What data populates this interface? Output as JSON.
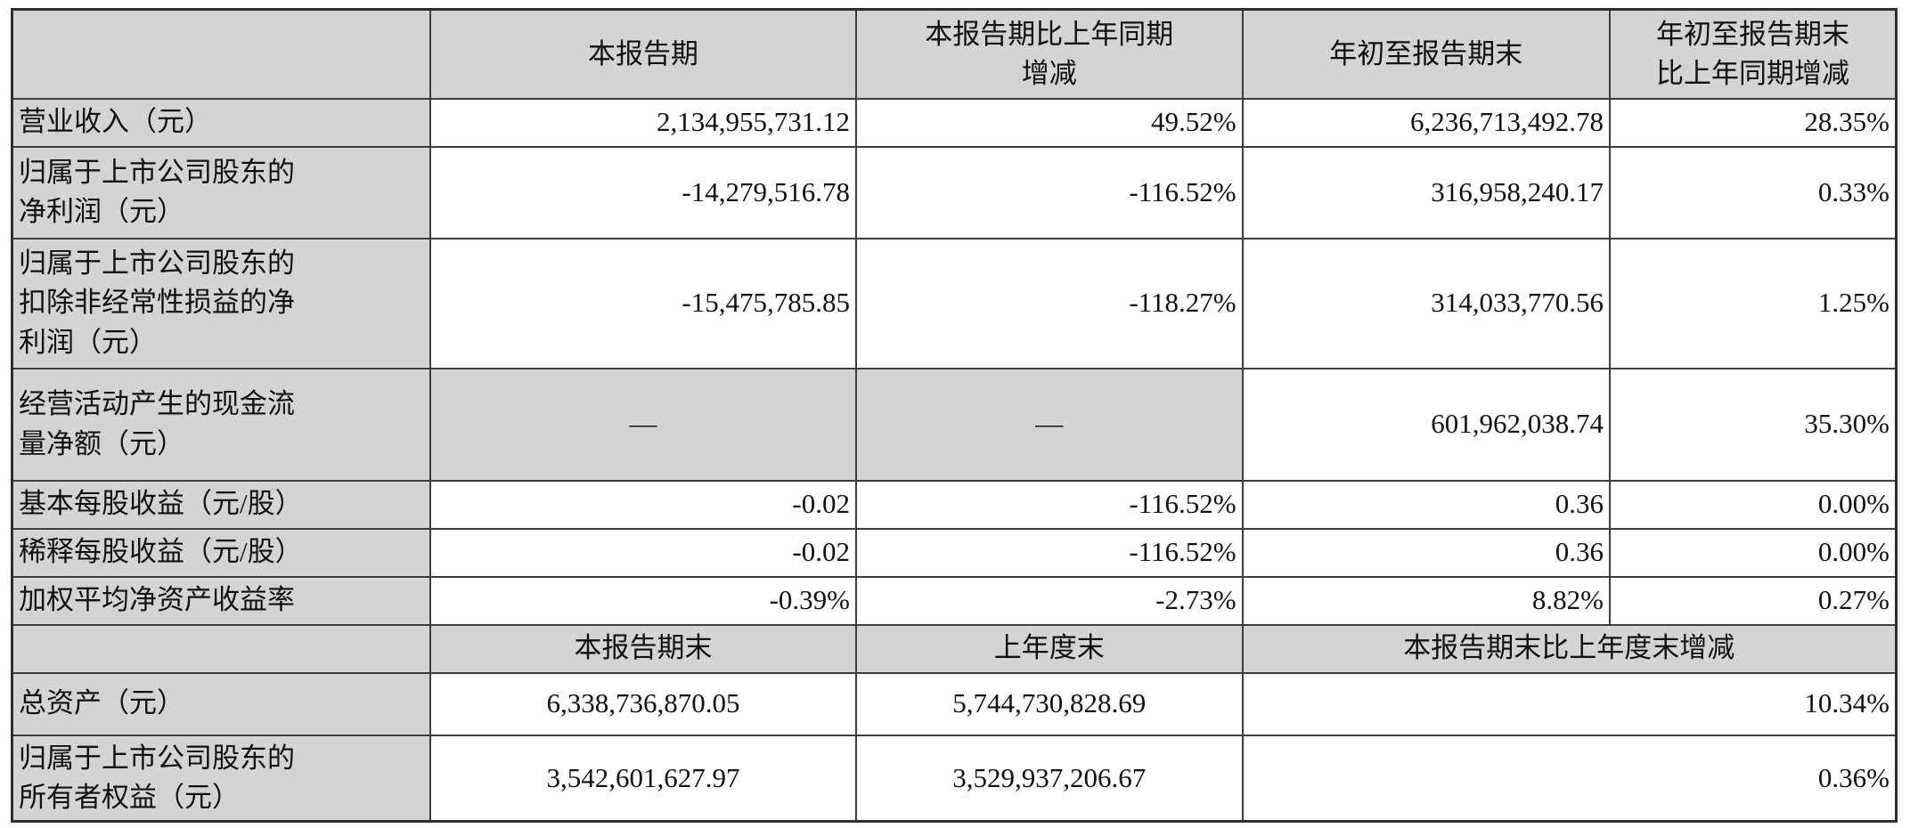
{
  "table": {
    "title_semantic": "主要会计数据和财务指标",
    "header": {
      "corner": "",
      "cols": [
        "本报告期",
        "本报告期比上年同期\n增减",
        "年初至报告期末",
        "年初至报告期末\n比上年同期增减"
      ]
    },
    "rows": [
      {
        "label": "营业收入（元）",
        "values": [
          "2,134,955,731.12",
          "49.52%",
          "6,236,713,492.78",
          "28.35%"
        ]
      },
      {
        "label": "归属于上市公司股东的\n净利润（元）",
        "values": [
          "-14,279,516.78",
          "-116.52%",
          "316,958,240.17",
          "0.33%"
        ]
      },
      {
        "label": "归属于上市公司股东的\n扣除非经常性损益的净\n利润（元）",
        "values": [
          "-15,475,785.85",
          "-118.27%",
          "314,033,770.56",
          "1.25%"
        ]
      },
      {
        "label": "经营活动产生的现金流\n量净额（元）",
        "values": [
          "—",
          "—",
          "601,962,038.74",
          "35.30%"
        ]
      },
      {
        "label": "基本每股收益（元/股）",
        "values": [
          "-0.02",
          "-116.52%",
          "0.36",
          "0.00%"
        ]
      },
      {
        "label": "稀释每股收益（元/股）",
        "values": [
          "-0.02",
          "-116.52%",
          "0.36",
          "0.00%"
        ]
      },
      {
        "label": "加权平均净资产收益率",
        "values": [
          "-0.39%",
          "-2.73%",
          "8.82%",
          "0.27%"
        ]
      }
    ],
    "sub_header": {
      "corner": "",
      "current_period_end": "本报告期末",
      "prior_year_end": "上年度末",
      "change_vs_prior_year_end": "本报告期末比上年度末增减"
    },
    "bottom_rows": [
      {
        "label": "总资产（元）",
        "current": "6,338,736,870.05",
        "prior": "5,744,730,828.69",
        "change": "10.34%"
      },
      {
        "label": "归属于上市公司股东的\n所有者权益（元）",
        "current": "3,542,601,627.97",
        "prior": "3,529,937,206.67",
        "change": "0.36%"
      }
    ]
  },
  "colors": {
    "cell_gray": "#d4d4d4",
    "border": "#3c3c3c",
    "outer_border": "#2e2e2e",
    "text": "#111111",
    "background": "#ffffff"
  }
}
